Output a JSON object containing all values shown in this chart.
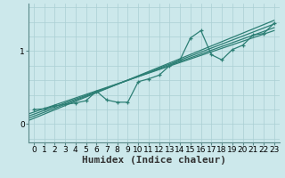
{
  "title": "",
  "xlabel": "Humidex (Indice chaleur)",
  "ylabel": "",
  "xlim": [
    -0.5,
    23.5
  ],
  "ylim": [
    -0.25,
    1.65
  ],
  "yticks": [
    0,
    1
  ],
  "xticks": [
    0,
    1,
    2,
    3,
    4,
    5,
    6,
    7,
    8,
    9,
    10,
    11,
    12,
    13,
    14,
    15,
    16,
    17,
    18,
    19,
    20,
    21,
    22,
    23
  ],
  "bg_color": "#cce8eb",
  "line_color": "#2d7f75",
  "grid_color": "#aacfd4",
  "main_line_x": [
    0,
    1,
    2,
    3,
    4,
    5,
    6,
    7,
    8,
    9,
    10,
    11,
    12,
    13,
    14,
    15,
    16,
    17,
    18,
    19,
    20,
    21,
    22,
    23
  ],
  "main_line_y": [
    0.2,
    0.21,
    0.25,
    0.27,
    0.29,
    0.32,
    0.45,
    0.33,
    0.3,
    0.3,
    0.58,
    0.62,
    0.67,
    0.8,
    0.88,
    1.18,
    1.28,
    0.95,
    0.88,
    1.02,
    1.08,
    1.22,
    1.24,
    1.38
  ],
  "reg_lines": [
    [
      0.05,
      1.42
    ],
    [
      0.08,
      1.37
    ],
    [
      0.11,
      1.32
    ],
    [
      0.14,
      1.28
    ]
  ],
  "xlabel_fontsize": 8,
  "tick_fontsize": 6.5
}
